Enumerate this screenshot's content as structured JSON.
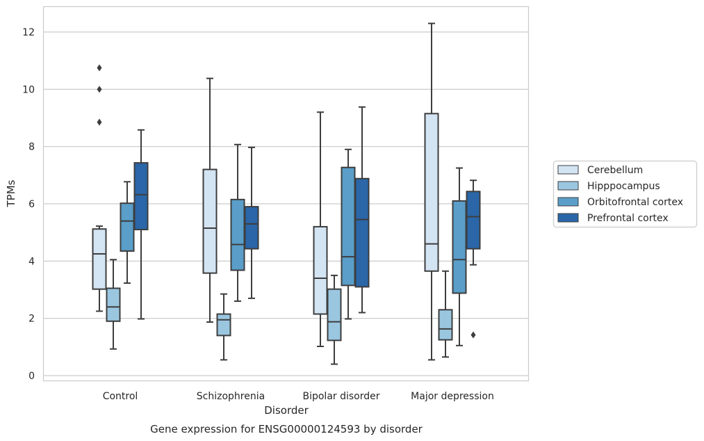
{
  "chart_data": {
    "type": "boxplot",
    "caption": "Gene expression for ENSG00000124593 by disorder",
    "xlabel": "Disorder",
    "ylabel": "TPMs",
    "ylim": [
      -0.2,
      12.9
    ],
    "yticks": [
      0,
      2,
      4,
      6,
      8,
      10,
      12
    ],
    "grid": true,
    "legend_position": "right",
    "categories": [
      "Control",
      "Schizophrenia",
      "Bipolar disorder",
      "Major depression"
    ],
    "series": [
      {
        "name": "Cerebellum",
        "color": "#d3e4f3",
        "boxes": [
          {
            "whisker_low": 2.25,
            "q1": 3.02,
            "median": 4.25,
            "q3": 5.12,
            "whisker_high": 5.22,
            "outliers": [
              8.85,
              10.0,
              10.75
            ]
          },
          {
            "whisker_low": 1.87,
            "q1": 3.58,
            "median": 5.15,
            "q3": 7.2,
            "whisker_high": 10.38,
            "outliers": []
          },
          {
            "whisker_low": 1.02,
            "q1": 2.15,
            "median": 3.4,
            "q3": 5.2,
            "whisker_high": 9.2,
            "outliers": []
          },
          {
            "whisker_low": 0.55,
            "q1": 3.65,
            "median": 4.6,
            "q3": 9.15,
            "whisker_high": 12.3,
            "outliers": []
          }
        ]
      },
      {
        "name": "Hipppocampus",
        "color": "#9ac6e0",
        "boxes": [
          {
            "whisker_low": 0.93,
            "q1": 1.9,
            "median": 2.4,
            "q3": 3.05,
            "whisker_high": 4.05,
            "outliers": []
          },
          {
            "whisker_low": 0.55,
            "q1": 1.4,
            "median": 1.95,
            "q3": 2.15,
            "whisker_high": 2.85,
            "outliers": []
          },
          {
            "whisker_low": 0.4,
            "q1": 1.23,
            "median": 1.88,
            "q3": 3.02,
            "whisker_high": 3.5,
            "outliers": []
          },
          {
            "whisker_low": 0.65,
            "q1": 1.25,
            "median": 1.63,
            "q3": 2.3,
            "whisker_high": 3.65,
            "outliers": []
          }
        ]
      },
      {
        "name": "Orbitofrontal cortex",
        "color": "#5a9ec9",
        "boxes": [
          {
            "whisker_low": 3.23,
            "q1": 4.35,
            "median": 5.4,
            "q3": 6.02,
            "whisker_high": 6.77,
            "outliers": []
          },
          {
            "whisker_low": 2.6,
            "q1": 3.68,
            "median": 4.58,
            "q3": 6.15,
            "whisker_high": 8.07,
            "outliers": []
          },
          {
            "whisker_low": 1.98,
            "q1": 3.15,
            "median": 4.15,
            "q3": 7.27,
            "whisker_high": 7.9,
            "outliers": []
          },
          {
            "whisker_low": 1.05,
            "q1": 2.88,
            "median": 4.05,
            "q3": 6.1,
            "whisker_high": 7.25,
            "outliers": []
          }
        ]
      },
      {
        "name": "Prefrontal cortex",
        "color": "#2a66a8",
        "boxes": [
          {
            "whisker_low": 1.98,
            "q1": 5.1,
            "median": 6.32,
            "q3": 7.43,
            "whisker_high": 8.58,
            "outliers": []
          },
          {
            "whisker_low": 2.7,
            "q1": 4.43,
            "median": 5.3,
            "q3": 5.9,
            "whisker_high": 7.97,
            "outliers": []
          },
          {
            "whisker_low": 2.2,
            "q1": 3.1,
            "median": 5.45,
            "q3": 6.88,
            "whisker_high": 9.38,
            "outliers": []
          },
          {
            "whisker_low": 3.87,
            "q1": 4.43,
            "median": 5.55,
            "q3": 6.43,
            "whisker_high": 6.82,
            "outliers": [
              1.42
            ]
          }
        ]
      }
    ]
  }
}
